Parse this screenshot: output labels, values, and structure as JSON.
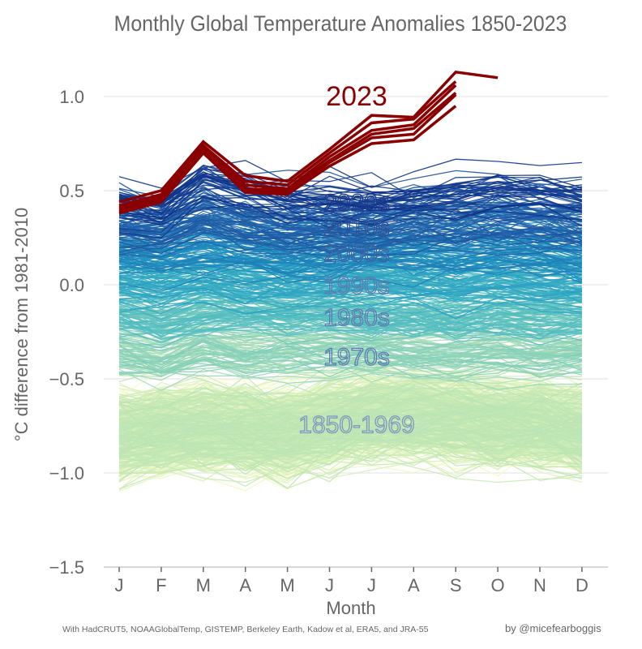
{
  "chart_data": {
    "type": "line",
    "title": "Monthly Global Temperature Anomalies 1850-2023",
    "xlabel": "Month",
    "ylabel": "°C difference from 1981-2010",
    "categories": [
      "J",
      "F",
      "M",
      "A",
      "M",
      "J",
      "J",
      "A",
      "S",
      "O",
      "N",
      "D"
    ],
    "ylim": [
      -1.5,
      1.15
    ],
    "yticks": [
      1.0,
      0.5,
      0.0,
      -0.5,
      -1.0,
      -1.5
    ],
    "ytick_labels": [
      "1.0",
      "0.5",
      "0.0",
      "−0.5",
      "−1.0",
      "−1.5"
    ],
    "grid": true,
    "legend": "none",
    "caption": "With HadCRUT5, NOAAGlobalTemp, GISTEMP, Berkeley Earth, Kadow et al, ERA5, and JRA-55",
    "credit": "by @micefearboggis",
    "color_scale": {
      "name": "YlGnBu",
      "stops": [
        "#ffffcc",
        "#c7e9b4",
        "#7fcdbb",
        "#41b6c4",
        "#1d91c0",
        "#225ea8",
        "#0c2c84"
      ]
    },
    "decade_labels": [
      {
        "text": "2020s",
        "value": 0.44,
        "color": "#1e3a8a"
      },
      {
        "text": "2010s",
        "value": 0.31,
        "color": "#2c4f96"
      },
      {
        "text": "2000s",
        "value": 0.17,
        "color": "#3b62a3"
      },
      {
        "text": "1990s",
        "value": 0.0,
        "color": "#5b7bb0"
      },
      {
        "text": "1980s",
        "value": -0.17,
        "color": "#5b7bb0"
      },
      {
        "text": "1970s",
        "value": -0.38,
        "color": "#5b7bb0"
      },
      {
        "text": "1850-1969",
        "value": -0.74,
        "color": "#7f96bf"
      }
    ],
    "decade_bands": [
      {
        "label": "2020s",
        "mean_by_month": [
          0.44,
          0.4,
          0.55,
          0.5,
          0.46,
          0.45,
          0.45,
          0.46,
          0.48,
          0.5,
          0.5,
          0.46
        ],
        "spread": 0.22,
        "count": 38
      },
      {
        "label": "2010s",
        "mean_by_month": [
          0.32,
          0.3,
          0.38,
          0.33,
          0.3,
          0.3,
          0.31,
          0.33,
          0.33,
          0.36,
          0.35,
          0.32
        ],
        "spread": 0.25,
        "count": 70
      },
      {
        "label": "2000s",
        "mean_by_month": [
          0.18,
          0.16,
          0.2,
          0.18,
          0.16,
          0.17,
          0.18,
          0.18,
          0.18,
          0.2,
          0.19,
          0.17
        ],
        "spread": 0.22,
        "count": 70
      },
      {
        "label": "1990s",
        "mean_by_month": [
          0.01,
          -0.01,
          0.02,
          0.0,
          -0.02,
          0.0,
          0.01,
          0.0,
          -0.02,
          0.01,
          0.0,
          -0.01
        ],
        "spread": 0.22,
        "count": 70
      },
      {
        "label": "1980s",
        "mean_by_month": [
          -0.17,
          -0.2,
          -0.15,
          -0.16,
          -0.17,
          -0.16,
          -0.18,
          -0.17,
          -0.19,
          -0.17,
          -0.19,
          -0.17
        ],
        "spread": 0.22,
        "count": 70
      },
      {
        "label": "1970s",
        "mean_by_month": [
          -0.36,
          -0.4,
          -0.34,
          -0.37,
          -0.36,
          -0.35,
          -0.36,
          -0.37,
          -0.38,
          -0.36,
          -0.38,
          -0.36
        ],
        "spread": 0.22,
        "count": 70
      },
      {
        "label": "1850-1969",
        "mean_by_month": [
          -0.8,
          -0.78,
          -0.76,
          -0.78,
          -0.78,
          -0.74,
          -0.7,
          -0.7,
          -0.72,
          -0.75,
          -0.74,
          -0.78
        ],
        "spread": 0.35,
        "count": 500
      }
    ],
    "highlight": {
      "label": "2023",
      "color": "#8b0000",
      "series": [
        {
          "name": "dataset-1",
          "values": [
            0.44,
            0.5,
            0.76,
            0.58,
            0.55,
            0.72,
            0.9,
            0.89,
            1.13,
            1.1
          ]
        },
        {
          "name": "dataset-2",
          "values": [
            0.42,
            0.48,
            0.74,
            0.55,
            0.53,
            0.7,
            0.86,
            0.88,
            1.08
          ]
        },
        {
          "name": "dataset-3",
          "values": [
            0.41,
            0.47,
            0.73,
            0.53,
            0.51,
            0.68,
            0.82,
            0.85,
            1.06
          ]
        },
        {
          "name": "dataset-4",
          "values": [
            0.4,
            0.46,
            0.72,
            0.51,
            0.5,
            0.66,
            0.8,
            0.83,
            1.02
          ]
        },
        {
          "name": "dataset-5",
          "values": [
            0.39,
            0.45,
            0.71,
            0.5,
            0.49,
            0.65,
            0.78,
            0.8,
            1.01
          ]
        },
        {
          "name": "dataset-6",
          "values": [
            0.38,
            0.44,
            0.7,
            0.49,
            0.48,
            0.63,
            0.75,
            0.77,
            0.95
          ]
        }
      ]
    }
  }
}
